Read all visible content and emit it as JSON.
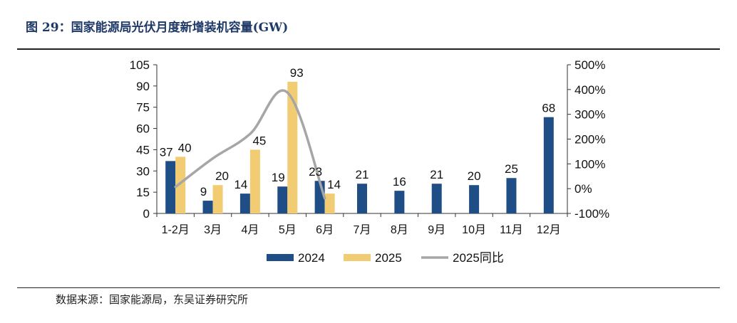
{
  "title": "图 29：国家能源局光伏月度新增装机容量(GW)",
  "source": "数据来源：国家能源局，东吴证券研究所",
  "colors": {
    "s2024": "#1f4e87",
    "s2025": "#f1cc73",
    "yoy": "#a6a6a6"
  },
  "chart_data": {
    "type": "bar",
    "categories": [
      "1-2月",
      "3月",
      "4月",
      "5月",
      "6月",
      "7月",
      "8月",
      "9月",
      "10月",
      "11月",
      "12月"
    ],
    "series": [
      {
        "name": "2024",
        "type": "bar",
        "axis": "left",
        "values": [
          37,
          9,
          14,
          19,
          23,
          21,
          16,
          21,
          20,
          25,
          68
        ]
      },
      {
        "name": "2025",
        "type": "bar",
        "axis": "left",
        "values": [
          40,
          20,
          45,
          93,
          14,
          null,
          null,
          null,
          null,
          null,
          null
        ]
      },
      {
        "name": "2025同比",
        "type": "line",
        "axis": "right",
        "unit": "%",
        "values": [
          7,
          122,
          221,
          388,
          -39,
          null,
          null,
          null,
          null,
          null,
          null
        ]
      }
    ],
    "yleft": {
      "ylim": [
        0,
        105
      ],
      "ticks": [
        "0",
        "15",
        "30",
        "45",
        "60",
        "75",
        "90",
        "105"
      ]
    },
    "yright": {
      "ylim": [
        -100,
        500
      ],
      "ticks": [
        "-100%",
        "0%",
        "100%",
        "200%",
        "300%",
        "400%",
        "500%"
      ]
    },
    "legend": {
      "position": "bottom",
      "items": [
        "2024",
        "2025",
        "2025同比"
      ]
    },
    "grid": false
  }
}
